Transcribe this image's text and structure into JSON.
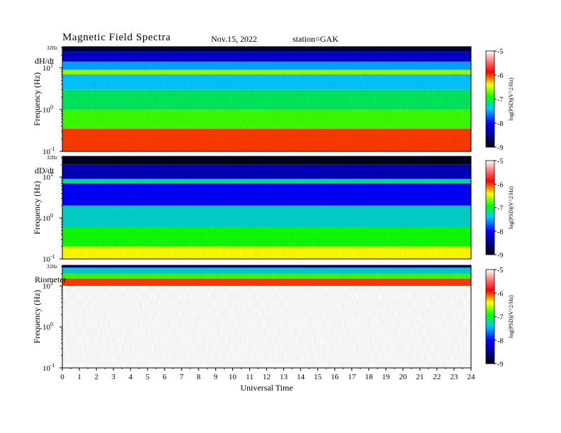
{
  "header": {
    "title": "Magnetic  Field  Spectra",
    "date": "Nov.15, 2022",
    "station": "station=GAK"
  },
  "chart_data": {
    "type": "heatmap",
    "xlabel": "Universal Time",
    "x_ticks": [
      "0",
      "1",
      "2",
      "3",
      "4",
      "5",
      "6",
      "7",
      "8",
      "9",
      "10",
      "11",
      "12",
      "13",
      "14",
      "15",
      "16",
      "17",
      "18",
      "19",
      "20",
      "21",
      "22",
      "23",
      "24"
    ],
    "xlim": [
      0,
      24
    ],
    "colorbar": {
      "label": "log(PSD)(V^2/Hz)",
      "ticks": [
        "-5",
        "-6",
        "-7",
        "-8",
        "-9"
      ],
      "range": [
        -9,
        -5
      ]
    },
    "panels": [
      {
        "name": "dH/dt",
        "ylabel": "Frequency  (Hz)",
        "top_label": "32Hz",
        "y_ticks": [
          {
            "base": "10",
            "exp": "1"
          },
          {
            "base": "10",
            "exp": "0"
          },
          {
            "base": "10",
            "exp": "-1"
          }
        ],
        "ylim_hz": [
          0.1,
          32
        ],
        "bands": [
          {
            "freq_range": [
              24,
              32
            ],
            "log_psd": -8.8
          },
          {
            "freq_range": [
              14,
              24
            ],
            "log_psd": -8.2
          },
          {
            "freq_range": [
              9,
              14
            ],
            "log_psd": -7.5
          },
          {
            "freq_range": [
              7,
              9
            ],
            "log_psd": -6.6
          },
          {
            "freq_range": [
              3,
              7
            ],
            "log_psd": -7.4
          },
          {
            "freq_range": [
              1,
              3
            ],
            "log_psd": -7.1
          },
          {
            "freq_range": [
              0.35,
              1
            ],
            "log_psd": -6.8
          },
          {
            "freq_range": [
              0.1,
              0.35
            ],
            "log_psd": -6.0
          }
        ]
      },
      {
        "name": "dD/dt",
        "ylabel": "Frequency  (Hz)",
        "top_label": "32Hz",
        "y_ticks": [
          {
            "base": "10",
            "exp": "1"
          },
          {
            "base": "10",
            "exp": "0"
          },
          {
            "base": "10",
            "exp": "-1"
          }
        ],
        "ylim_hz": [
          0.1,
          32
        ],
        "bands": [
          {
            "freq_range": [
              20,
              32
            ],
            "log_psd": -8.9
          },
          {
            "freq_range": [
              9,
              20
            ],
            "log_psd": -8.3
          },
          {
            "freq_range": [
              7,
              9
            ],
            "log_psd": -7.2
          },
          {
            "freq_range": [
              2,
              7
            ],
            "log_psd": -8.0
          },
          {
            "freq_range": [
              0.6,
              2
            ],
            "log_psd": -7.3
          },
          {
            "freq_range": [
              0.2,
              0.6
            ],
            "log_psd": -6.9
          },
          {
            "freq_range": [
              0.1,
              0.2
            ],
            "log_psd": -6.4
          }
        ]
      },
      {
        "name": "Riometer",
        "ylabel": "Frequency  (Hz)",
        "top_label": "32Hz",
        "y_ticks": [
          {
            "base": "10",
            "exp": "1"
          },
          {
            "base": "10",
            "exp": "0"
          },
          {
            "base": "10",
            "exp": "-1"
          }
        ],
        "ylim_hz": [
          0.1,
          32
        ],
        "bands": [
          {
            "freq_range": [
              28,
              32
            ],
            "log_psd": -8.5
          },
          {
            "freq_range": [
              20,
              28
            ],
            "log_psd": -7.3
          },
          {
            "freq_range": [
              15,
              20
            ],
            "log_psd": -6.8
          },
          {
            "freq_range": [
              10,
              15
            ],
            "log_psd": -6.0
          },
          {
            "freq_range": [
              0.1,
              10
            ],
            "log_psd": -5.0
          }
        ]
      }
    ]
  }
}
